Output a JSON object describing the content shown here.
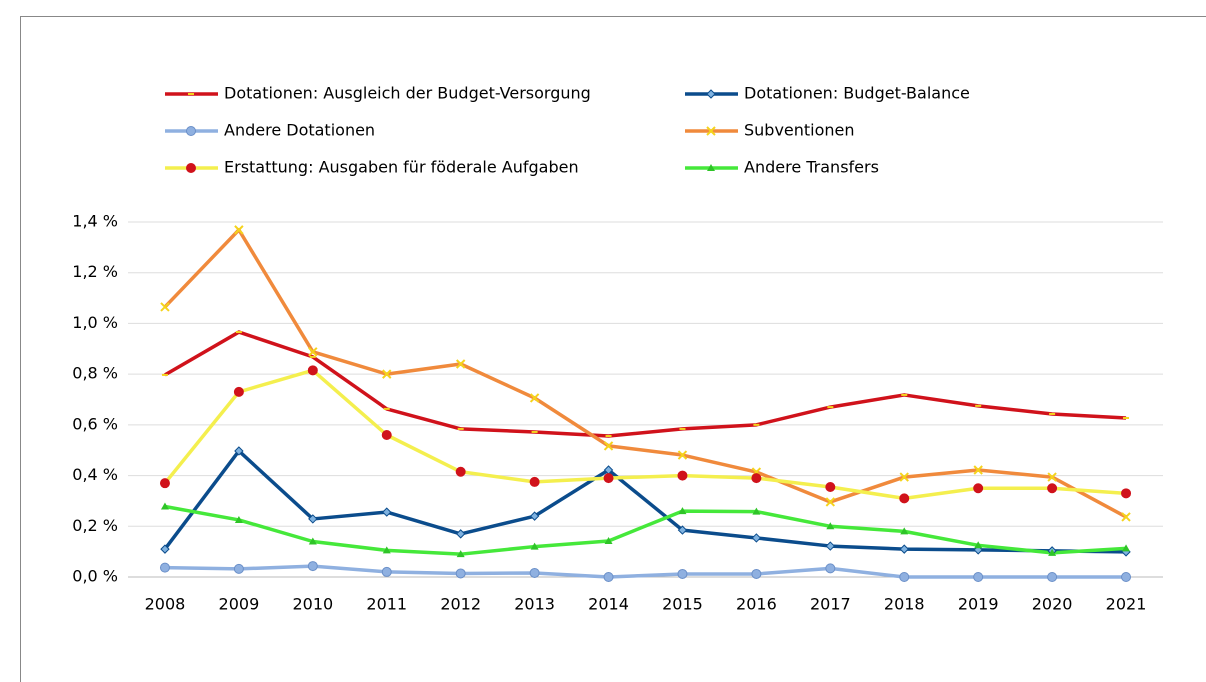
{
  "chart_data": {
    "type": "line",
    "categories": [
      "2008",
      "2009",
      "2010",
      "2011",
      "2012",
      "2013",
      "2014",
      "2015",
      "2016",
      "2017",
      "2018",
      "2019",
      "2020",
      "2021"
    ],
    "series": [
      {
        "name": "Dotationen: Ausgleich der Budget-Versorgung",
        "color": "#d0121b",
        "marker": "dash",
        "marker_color": "#f5d31c",
        "values": [
          0.797,
          0.966,
          0.868,
          0.663,
          0.584,
          0.572,
          0.556,
          0.584,
          0.6,
          0.67,
          0.718,
          0.675,
          0.643,
          0.627
        ]
      },
      {
        "name": "Dotationen: Budget-Balance",
        "color": "#0b4c8c",
        "marker": "diamond",
        "marker_color": "#7fb2e0",
        "values": [
          0.11,
          0.497,
          0.229,
          0.256,
          0.17,
          0.24,
          0.422,
          0.185,
          0.154,
          0.122,
          0.11,
          0.107,
          0.103,
          0.099
        ]
      },
      {
        "name": "Andere Dotationen",
        "color": "#8fb0e0",
        "marker": "circle",
        "marker_color": "#8fb0e0",
        "values": [
          0.037,
          0.032,
          0.043,
          0.02,
          0.014,
          0.016,
          0,
          0.012,
          0.012,
          0.034,
          0,
          0,
          0,
          0
        ]
      },
      {
        "name": "Subventionen",
        "color": "#f08a3c",
        "marker": "x",
        "marker_color": "#f5d31c",
        "values": [
          1.065,
          1.369,
          0.888,
          0.8,
          0.84,
          0.706,
          0.517,
          0.481,
          0.414,
          0.296,
          0.394,
          0.422,
          0.394,
          0.237
        ]
      },
      {
        "name": "Erstattung: Ausgaben für föderale Aufgaben",
        "color": "#f4ef4e",
        "marker": "circle",
        "marker_color": "#d0121b",
        "values": [
          0.37,
          0.73,
          0.815,
          0.56,
          0.415,
          0.375,
          0.39,
          0.4,
          0.39,
          0.355,
          0.31,
          0.35,
          0.35,
          0.33
        ]
      },
      {
        "name": "Andere Transfers",
        "color": "#45e83a",
        "marker": "triangle",
        "marker_color": "#2fc428",
        "values": [
          0.278,
          0.225,
          0.14,
          0.105,
          0.09,
          0.12,
          0.142,
          0.26,
          0.258,
          0.2,
          0.18,
          0.125,
          0.095,
          0.113
        ]
      }
    ],
    "ylim": [
      0,
      1.4
    ],
    "yticks": [
      {
        "value": 0,
        "label": "0,0 %"
      },
      {
        "value": 0.2,
        "label": "0,2 %"
      },
      {
        "value": 0.4,
        "label": "0,4 %"
      },
      {
        "value": 0.6,
        "label": "0,6 %"
      },
      {
        "value": 0.8,
        "label": "0,8 %"
      },
      {
        "value": 1.0,
        "label": "1,0 %"
      },
      {
        "value": 1.2,
        "label": "1,2 %"
      },
      {
        "value": 1.4,
        "label": "1,4 %"
      }
    ],
    "grid": true,
    "legend": "top"
  }
}
